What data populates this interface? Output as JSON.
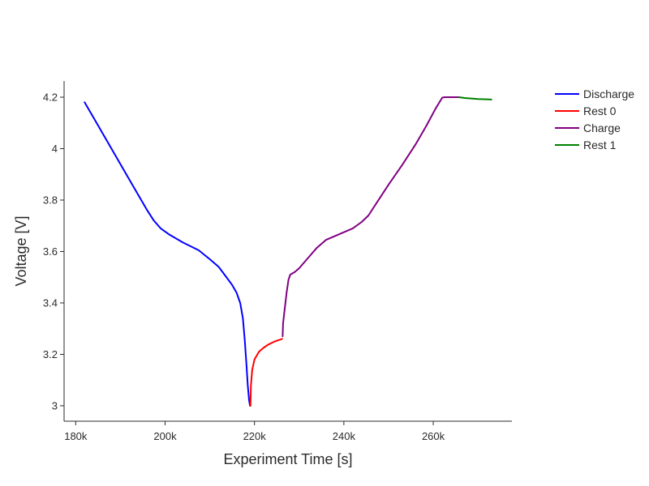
{
  "chart_data": {
    "type": "line",
    "xlabel": "Experiment Time [s]",
    "ylabel": "Voltage [V]",
    "xlim": [
      177400,
      277600
    ],
    "ylim": [
      2.94,
      4.263
    ],
    "x_ticks": [
      {
        "value": 180000,
        "label": "180k"
      },
      {
        "value": 200000,
        "label": "200k"
      },
      {
        "value": 220000,
        "label": "220k"
      },
      {
        "value": 240000,
        "label": "240k"
      },
      {
        "value": 260000,
        "label": "260k"
      }
    ],
    "y_ticks": [
      {
        "value": 3.0,
        "label": "3"
      },
      {
        "value": 3.2,
        "label": "3.2"
      },
      {
        "value": 3.4,
        "label": "3.4"
      },
      {
        "value": 3.6,
        "label": "3.6"
      },
      {
        "value": 3.8,
        "label": "3.8"
      },
      {
        "value": 4.0,
        "label": "4"
      },
      {
        "value": 4.2,
        "label": "4.2"
      }
    ],
    "grid": false,
    "legend_position": "top-right",
    "series": [
      {
        "name": "Discharge",
        "color": "#0000ff",
        "x": [
          182000,
          182500,
          185000,
          188000,
          191000,
          194000,
          196000,
          197500,
          199000,
          201000,
          204000,
          207500,
          210000,
          212000,
          213500,
          215000,
          216000,
          216800,
          217400,
          217800,
          218200,
          218500,
          218800,
          219000,
          219100
        ],
        "y": [
          4.18,
          4.165,
          4.09,
          4.0,
          3.91,
          3.82,
          3.76,
          3.72,
          3.69,
          3.665,
          3.635,
          3.605,
          3.57,
          3.54,
          3.505,
          3.47,
          3.44,
          3.4,
          3.34,
          3.26,
          3.16,
          3.08,
          3.02,
          3.0,
          3.0
        ]
      },
      {
        "name": "Rest 0",
        "color": "#ff0000",
        "x": [
          219100,
          219200,
          219500,
          220000,
          221000,
          222000,
          223000,
          224500,
          226200
        ],
        "y": [
          3.0,
          3.08,
          3.14,
          3.18,
          3.21,
          3.225,
          3.237,
          3.25,
          3.26
        ]
      },
      {
        "name": "Charge",
        "color": "#800080",
        "x": [
          226300,
          226400,
          226800,
          227200,
          227600,
          228000,
          229000,
          230000,
          232000,
          234000,
          236000,
          238000,
          240000,
          242000,
          244000,
          245500,
          247000,
          250000,
          253000,
          256000,
          258500,
          260500,
          262000,
          262500,
          264000,
          265800
        ],
        "y": [
          3.27,
          3.32,
          3.38,
          3.44,
          3.49,
          3.51,
          3.52,
          3.535,
          3.575,
          3.615,
          3.645,
          3.66,
          3.675,
          3.69,
          3.715,
          3.74,
          3.78,
          3.86,
          3.935,
          4.015,
          4.09,
          4.155,
          4.198,
          4.2,
          4.2,
          4.2
        ]
      },
      {
        "name": "Rest 1",
        "color": "#008000",
        "x": [
          265800,
          267000,
          268500,
          270000,
          271500,
          273000
        ],
        "y": [
          4.2,
          4.197,
          4.195,
          4.193,
          4.192,
          4.191
        ]
      }
    ]
  }
}
